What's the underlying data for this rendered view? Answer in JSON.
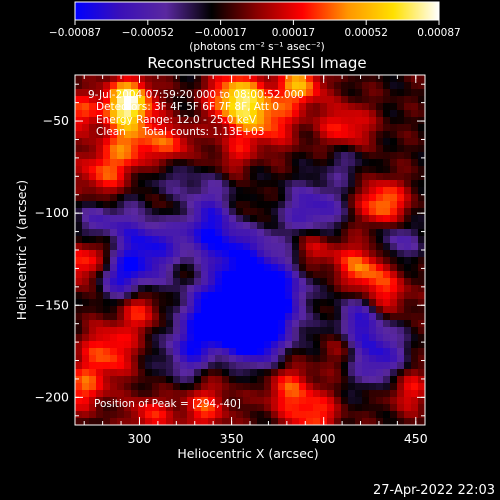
{
  "chart_data": {
    "type": "heatmap",
    "title": "Reconstructed RHESSI Image",
    "xlabel": "Heliocentric X (arcsec)",
    "ylabel": "Heliocentric Y (arcsec)",
    "xlim": [
      265,
      455
    ],
    "ylim": [
      -215,
      -25
    ],
    "x_ticks": [
      {
        "value": 300,
        "label": "300"
      },
      {
        "value": 350,
        "label": "350"
      },
      {
        "value": 400,
        "label": "400"
      },
      {
        "value": 450,
        "label": "450"
      }
    ],
    "y_ticks": [
      {
        "value": -50,
        "label": "−50"
      },
      {
        "value": -100,
        "label": "−100"
      },
      {
        "value": -150,
        "label": "−150"
      },
      {
        "value": -200,
        "label": "−200"
      }
    ],
    "colorbar": {
      "range": [
        -0.00087,
        0.00087
      ],
      "tick_labels": [
        "−0.00087",
        "−0.00052",
        "−0.00017",
        "0.00017",
        "0.00052",
        "0.00087"
      ],
      "unit_label": "(photons cm⁻² s⁻¹ asec⁻²)",
      "colors": [
        "#0000ff",
        "#3a10b8",
        "#5a28a0",
        "#000000",
        "#8a0000",
        "#ff0000",
        "#ff9600",
        "#ffe000",
        "#ffffff"
      ]
    },
    "annotations": [
      "9-Jul-2004 07:59:20.000 to 08:00:52.000",
      "Detectors: 3F 4F 5F 6F 7F 8F, Att 0",
      "Energy Range: 12.0 - 25.0 keV",
      "Clean     Total counts: 1.13E+03",
      "Position of Peak = [294,-40]"
    ],
    "peak": {
      "x": 294,
      "y": -40
    },
    "grid": false
  },
  "footer": {
    "timestamp": "27-Apr-2022 22:03"
  }
}
